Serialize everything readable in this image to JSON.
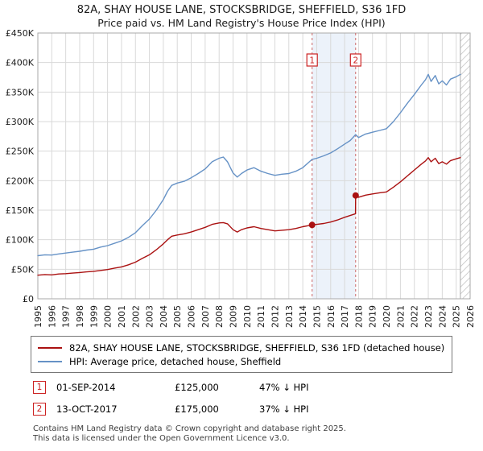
{
  "title_line1": "82A, SHAY HOUSE LANE, STOCKSBRIDGE, SHEFFIELD, S36 1FD",
  "title_line2": "Price paid vs. HM Land Registry's House Price Index (HPI)",
  "chart_data": {
    "type": "line",
    "x_range": [
      1995,
      2026
    ],
    "ylim": [
      0,
      450000
    ],
    "grid": true,
    "y_ticks": [
      0,
      50000,
      100000,
      150000,
      200000,
      250000,
      300000,
      350000,
      400000,
      450000
    ],
    "y_tick_labels": [
      "£0",
      "£50K",
      "£100K",
      "£150K",
      "£200K",
      "£250K",
      "£300K",
      "£350K",
      "£400K",
      "£450K"
    ],
    "x_ticks": [
      1995,
      1996,
      1997,
      1998,
      1999,
      2000,
      2001,
      2002,
      2003,
      2004,
      2005,
      2006,
      2007,
      2008,
      2009,
      2010,
      2011,
      2012,
      2013,
      2014,
      2015,
      2016,
      2017,
      2018,
      2019,
      2020,
      2021,
      2022,
      2023,
      2024,
      2025,
      2026
    ],
    "colors": {
      "grid": "#d9d9d9",
      "border": "#aaaaaa",
      "band": "#dde7f6",
      "dashed": "#cc6666",
      "marker": "#cc2222",
      "hatch": "#bbbbbb"
    },
    "series": [
      {
        "name": "82A, SHAY HOUSE LANE, STOCKSBRIDGE, SHEFFIELD, S36 1FD (detached house)",
        "color": "#aa1111",
        "x": [
          1995.0,
          1995.5,
          1996.0,
          1996.5,
          1997.0,
          1997.5,
          1998.0,
          1998.5,
          1999.0,
          1999.5,
          2000.0,
          2000.5,
          2001.0,
          2001.5,
          2002.0,
          2002.5,
          2003.0,
          2003.5,
          2004.0,
          2004.3,
          2004.6,
          2005.0,
          2005.5,
          2006.0,
          2006.5,
          2007.0,
          2007.5,
          2008.0,
          2008.3,
          2008.6,
          2009.0,
          2009.3,
          2009.6,
          2010.0,
          2010.5,
          2011.0,
          2011.5,
          2012.0,
          2012.5,
          2013.0,
          2013.5,
          2014.0,
          2014.67,
          2015.0,
          2015.5,
          2016.0,
          2016.5,
          2017.0,
          2017.4,
          2017.78,
          2017.79,
          2018.0,
          2018.5,
          2019.0,
          2019.5,
          2020.0,
          2020.5,
          2021.0,
          2021.5,
          2022.0,
          2022.5,
          2022.8,
          2023.0,
          2023.2,
          2023.5,
          2023.75,
          2024.0,
          2024.3,
          2024.6,
          2025.0,
          2025.3
        ],
        "y": [
          40000,
          41000,
          40500,
          42000,
          42500,
          43500,
          44500,
          45500,
          46500,
          48000,
          49500,
          52000,
          54000,
          57500,
          62000,
          68500,
          74500,
          83000,
          93000,
          100000,
          106000,
          108000,
          110000,
          113000,
          117000,
          121000,
          126000,
          128500,
          129000,
          127000,
          117000,
          113000,
          117000,
          120000,
          122000,
          119000,
          117000,
          115000,
          116000,
          117000,
          119000,
          122000,
          125000,
          126000,
          127500,
          130000,
          133500,
          138000,
          141000,
          144000,
          175000,
          172000,
          175500,
          177500,
          179500,
          181000,
          189000,
          198000,
          208000,
          218000,
          228000,
          233500,
          239000,
          232000,
          238000,
          229000,
          232000,
          228000,
          234000,
          237000,
          239000
        ]
      },
      {
        "name": "HPI: Average price, detached house, Sheffield",
        "color": "#6692c6",
        "x": [
          1995.0,
          1995.5,
          1996.0,
          1996.5,
          1997.0,
          1997.5,
          1998.0,
          1998.5,
          1999.0,
          1999.5,
          2000.0,
          2000.5,
          2001.0,
          2001.5,
          2002.0,
          2002.5,
          2003.0,
          2003.5,
          2004.0,
          2004.3,
          2004.6,
          2005.0,
          2005.5,
          2006.0,
          2006.5,
          2007.0,
          2007.5,
          2008.0,
          2008.3,
          2008.6,
          2009.0,
          2009.3,
          2009.6,
          2010.0,
          2010.5,
          2011.0,
          2011.5,
          2012.0,
          2012.5,
          2013.0,
          2013.5,
          2014.0,
          2014.67,
          2015.0,
          2015.5,
          2016.0,
          2016.5,
          2017.0,
          2017.4,
          2017.79,
          2018.0,
          2018.5,
          2019.0,
          2019.5,
          2020.0,
          2020.5,
          2021.0,
          2021.5,
          2022.0,
          2022.5,
          2022.8,
          2023.0,
          2023.2,
          2023.5,
          2023.75,
          2024.0,
          2024.3,
          2024.6,
          2025.0,
          2025.3
        ],
        "y": [
          73000,
          74500,
          74000,
          76000,
          77500,
          79000,
          80500,
          82500,
          84000,
          87500,
          90000,
          94000,
          98000,
          104000,
          112000,
          124000,
          135000,
          150000,
          168000,
          182000,
          192000,
          196000,
          199000,
          205000,
          212000,
          220000,
          232000,
          238000,
          240000,
          232000,
          213000,
          206000,
          212000,
          218000,
          222000,
          216000,
          212000,
          209000,
          211000,
          212000,
          216000,
          222000,
          236000,
          238000,
          242000,
          247000,
          254000,
          262000,
          268000,
          278000,
          273000,
          279000,
          282000,
          285000,
          288000,
          300000,
          315000,
          331000,
          346000,
          362000,
          371000,
          380000,
          368000,
          378000,
          364000,
          369000,
          362000,
          372000,
          376000,
          380000
        ]
      }
    ],
    "markers": [
      {
        "label": "1",
        "x": 2014.67,
        "y": 125000
      },
      {
        "label": "2",
        "x": 2017.79,
        "y": 175000
      }
    ],
    "shaded_band": {
      "from": 2014.67,
      "to": 2017.79
    },
    "hatch_from": 2025.3
  },
  "legend": {
    "items": [
      {
        "label": "82A, SHAY HOUSE LANE, STOCKSBRIDGE, SHEFFIELD, S36 1FD (detached house)",
        "color": "#aa1111"
      },
      {
        "label": "HPI: Average price, detached house, Sheffield",
        "color": "#6692c6"
      }
    ]
  },
  "transactions": [
    {
      "num": "1",
      "date": "01-SEP-2014",
      "price": "£125,000",
      "hpi": "47% ↓ HPI"
    },
    {
      "num": "2",
      "date": "13-OCT-2017",
      "price": "£175,000",
      "hpi": "37% ↓ HPI"
    }
  ],
  "footer_line1": "Contains HM Land Registry data © Crown copyright and database right 2025.",
  "footer_line2": "This data is licensed under the Open Government Licence v3.0."
}
